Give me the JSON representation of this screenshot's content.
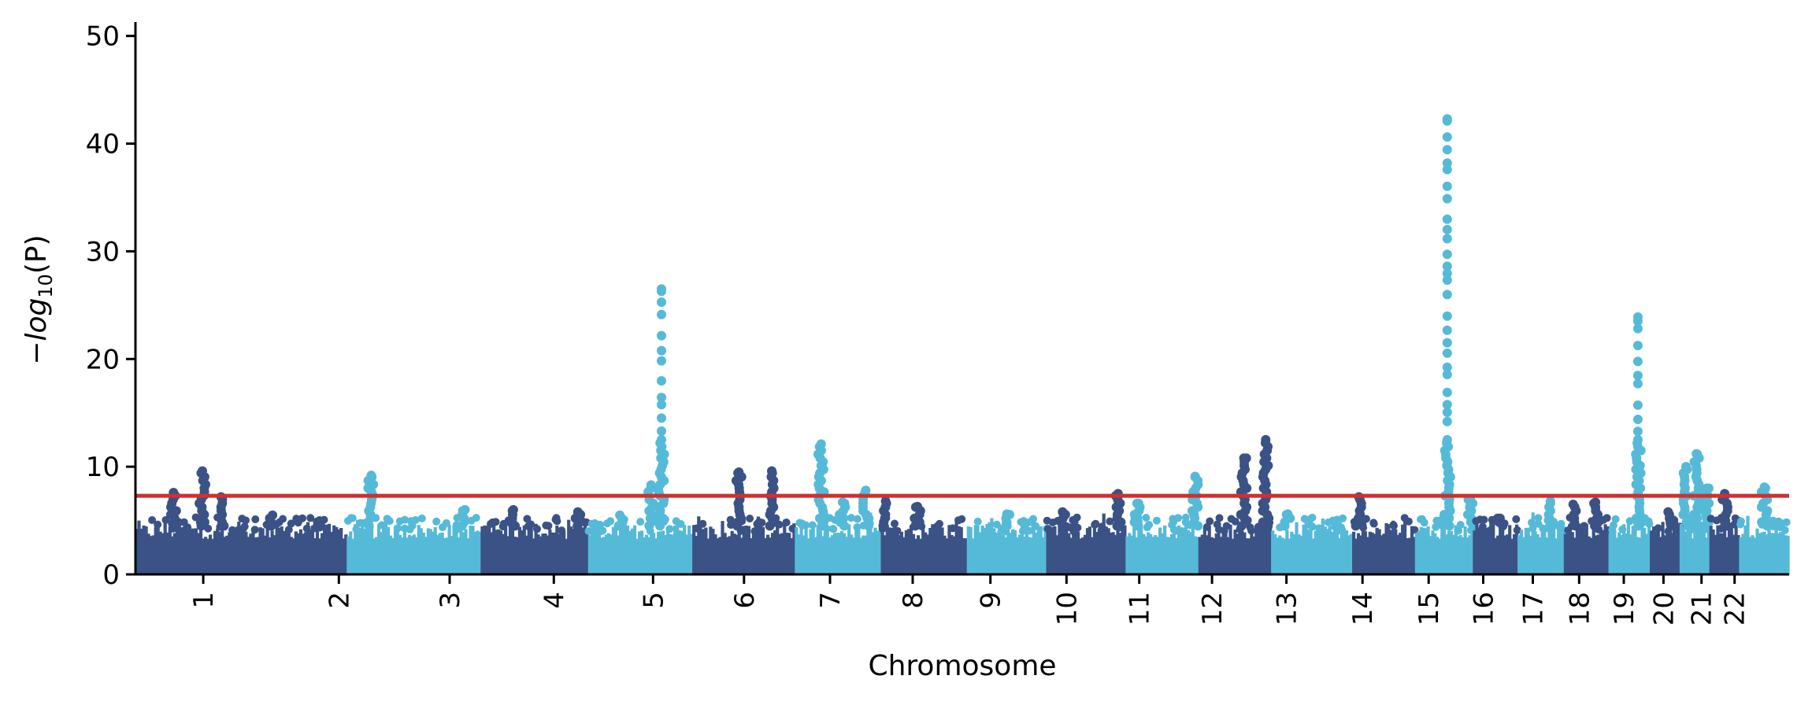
{
  "chart_data": {
    "type": "scatter",
    "subtype": "manhattan",
    "title": "",
    "xlabel": "Chromosome",
    "ylabel": {
      "minus_sign": "−",
      "log_text": "log",
      "subscript": "10",
      "argument": "(P)"
    },
    "ylim": [
      0,
      51
    ],
    "yticks": [
      "0",
      "10",
      "20",
      "30",
      "40",
      "50"
    ],
    "ytick_values": [
      0,
      10,
      20,
      30,
      40,
      50
    ],
    "threshold": 7.3,
    "colors": {
      "dark": "#3a5285",
      "light": "#55bad8",
      "threshold": "#d03030",
      "axis": "#000000"
    },
    "chromosomes": [
      {
        "label": "1",
        "start": 0.0,
        "end": 0.046,
        "color": "dark",
        "peaks": [
          {
            "pos": 0.5,
            "max": 7.6
          },
          {
            "pos": 0.88,
            "max": 9.6
          }
        ]
      },
      {
        "label": "2",
        "start": 0.046,
        "end": 0.128,
        "color": "dark",
        "peaks": [
          {
            "pos": 0.07,
            "max": 7.2
          },
          {
            "pos": 0.45,
            "max": 5.5
          }
        ]
      },
      {
        "label": "3",
        "start": 0.128,
        "end": 0.209,
        "color": "light",
        "peaks": [
          {
            "pos": 0.18,
            "max": 9.2
          },
          {
            "pos": 0.88,
            "max": 6.0
          }
        ]
      },
      {
        "label": "4",
        "start": 0.209,
        "end": 0.274,
        "color": "dark",
        "peaks": [
          {
            "pos": 0.3,
            "max": 6.0
          },
          {
            "pos": 0.9,
            "max": 5.8
          }
        ]
      },
      {
        "label": "5",
        "start": 0.274,
        "end": 0.337,
        "color": "light",
        "peaks": [
          {
            "pos": 0.7,
            "max": 26.5
          },
          {
            "pos": 0.6,
            "max": 8.3
          },
          {
            "pos": 0.3,
            "max": 5.5
          }
        ]
      },
      {
        "label": "6",
        "start": 0.337,
        "end": 0.399,
        "color": "dark",
        "peaks": [
          {
            "pos": 0.45,
            "max": 9.5
          },
          {
            "pos": 0.77,
            "max": 9.6
          }
        ]
      },
      {
        "label": "7",
        "start": 0.399,
        "end": 0.451,
        "color": "light",
        "peaks": [
          {
            "pos": 0.3,
            "max": 12.1
          },
          {
            "pos": 0.82,
            "max": 7.8
          },
          {
            "pos": 0.55,
            "max": 6.7
          }
        ]
      },
      {
        "label": "8",
        "start": 0.451,
        "end": 0.503,
        "color": "dark",
        "peaks": [
          {
            "pos": 0.05,
            "max": 6.8
          },
          {
            "pos": 0.42,
            "max": 6.3
          }
        ]
      },
      {
        "label": "9",
        "start": 0.503,
        "end": 0.551,
        "color": "light",
        "peaks": [
          {
            "pos": 0.5,
            "max": 5.6
          }
        ]
      },
      {
        "label": "10",
        "start": 0.551,
        "end": 0.599,
        "color": "dark",
        "peaks": [
          {
            "pos": 0.2,
            "max": 5.8
          },
          {
            "pos": 0.9,
            "max": 7.5
          }
        ]
      },
      {
        "label": "11",
        "start": 0.599,
        "end": 0.643,
        "color": "light",
        "peaks": [
          {
            "pos": 0.15,
            "max": 6.6
          },
          {
            "pos": 0.95,
            "max": 9.1
          }
        ]
      },
      {
        "label": "12",
        "start": 0.643,
        "end": 0.687,
        "color": "dark",
        "peaks": [
          {
            "pos": 0.62,
            "max": 10.8
          },
          {
            "pos": 0.92,
            "max": 12.5
          }
        ]
      },
      {
        "label": "13",
        "start": 0.687,
        "end": 0.736,
        "color": "light",
        "peaks": [
          {
            "pos": 0.2,
            "max": 5.6
          }
        ]
      },
      {
        "label": "14",
        "start": 0.736,
        "end": 0.774,
        "color": "dark",
        "peaks": [
          {
            "pos": 0.1,
            "max": 7.2
          }
        ]
      },
      {
        "label": "15",
        "start": 0.774,
        "end": 0.809,
        "color": "light",
        "peaks": [
          {
            "pos": 0.55,
            "max": 42.3
          },
          {
            "pos": 0.95,
            "max": 7.0
          }
        ]
      },
      {
        "label": "16",
        "start": 0.809,
        "end": 0.836,
        "color": "dark",
        "peaks": [
          {
            "pos": 0.6,
            "max": 5.2
          }
        ]
      },
      {
        "label": "17",
        "start": 0.836,
        "end": 0.864,
        "color": "light",
        "peaks": [
          {
            "pos": 0.7,
            "max": 6.8
          }
        ]
      },
      {
        "label": "18",
        "start": 0.864,
        "end": 0.891,
        "color": "dark",
        "peaks": [
          {
            "pos": 0.2,
            "max": 6.5
          },
          {
            "pos": 0.7,
            "max": 6.7
          }
        ]
      },
      {
        "label": "19",
        "start": 0.891,
        "end": 0.916,
        "color": "light",
        "peaks": [
          {
            "pos": 0.7,
            "max": 23.9
          }
        ]
      },
      {
        "label": "20",
        "start": 0.916,
        "end": 0.934,
        "color": "dark",
        "peaks": [
          {
            "pos": 0.6,
            "max": 5.8
          }
        ]
      },
      {
        "label": "21",
        "start": 0.934,
        "end": 0.952,
        "color": "light",
        "peaks": [
          {
            "pos": 0.2,
            "max": 10.0
          },
          {
            "pos": 0.55,
            "max": 11.2
          },
          {
            "pos": 0.9,
            "max": 8.0
          }
        ]
      },
      {
        "label": "22",
        "start": 0.952,
        "end": 0.97,
        "color": "dark",
        "peaks": [
          {
            "pos": 0.5,
            "max": 7.5
          }
        ]
      },
      {
        "label": "",
        "start": 0.97,
        "end": 1.0,
        "color": "light",
        "peaks": [
          {
            "pos": 0.5,
            "max": 8.1
          }
        ]
      }
    ],
    "x_tick_labels": [
      {
        "label": "1",
        "pos": 0.041
      },
      {
        "label": "2",
        "pos": 0.123
      },
      {
        "label": "3",
        "pos": 0.19
      },
      {
        "label": "4",
        "pos": 0.253
      },
      {
        "label": "5",
        "pos": 0.313
      },
      {
        "label": "6",
        "pos": 0.368
      },
      {
        "label": "7",
        "pos": 0.42
      },
      {
        "label": "8",
        "pos": 0.47
      },
      {
        "label": "9",
        "pos": 0.517
      },
      {
        "label": "10",
        "pos": 0.563
      },
      {
        "label": "11",
        "pos": 0.607
      },
      {
        "label": "12",
        "pos": 0.651
      },
      {
        "label": "13",
        "pos": 0.696
      },
      {
        "label": "14",
        "pos": 0.742
      },
      {
        "label": "15",
        "pos": 0.782
      },
      {
        "label": "16",
        "pos": 0.815
      },
      {
        "label": "17",
        "pos": 0.845
      },
      {
        "label": "18",
        "pos": 0.873
      },
      {
        "label": "19",
        "pos": 0.9
      },
      {
        "label": "20",
        "pos": 0.924
      },
      {
        "label": "21",
        "pos": 0.947
      },
      {
        "label": "22",
        "pos": 0.967
      }
    ]
  }
}
